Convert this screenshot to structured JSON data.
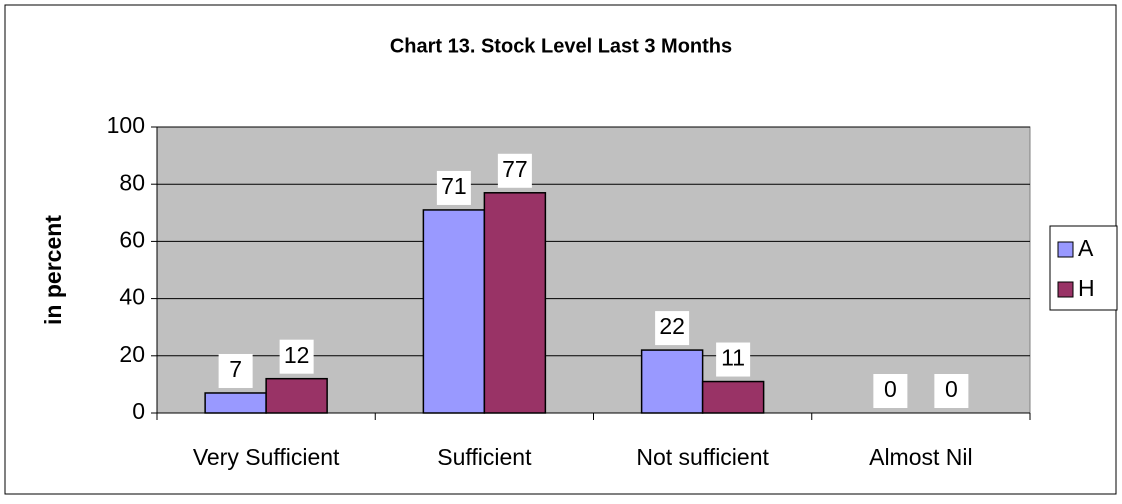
{
  "chart_data": {
    "type": "bar",
    "title": "Chart 13. Stock Level Last 3 Months",
    "y_label": "in percent",
    "categories": [
      "Very Sufficient",
      "Sufficient",
      "Not sufficient",
      "Almost Nil"
    ],
    "series": [
      {
        "name": "A",
        "color": "#9999ff",
        "values": [
          7,
          71,
          22,
          0
        ]
      },
      {
        "name": "H",
        "color": "#993366",
        "values": [
          12,
          77,
          11,
          0
        ]
      }
    ],
    "ylim": [
      0,
      100
    ],
    "yticks": [
      0,
      20,
      40,
      60,
      80,
      100
    ],
    "grid": true,
    "legend": "right",
    "plot_background": "#c0c0c0"
  }
}
